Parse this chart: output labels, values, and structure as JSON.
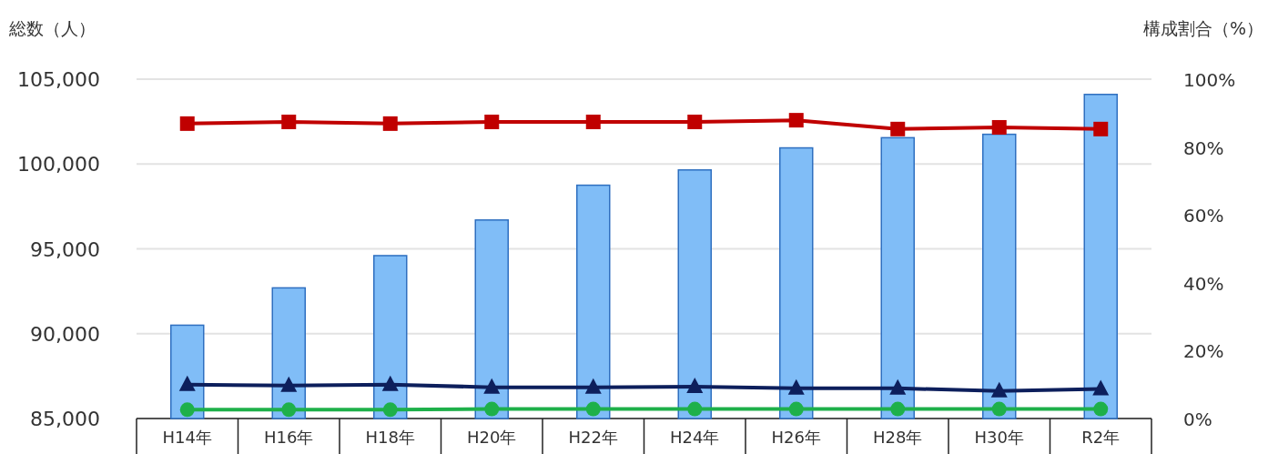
{
  "chart_data": {
    "type": "bar",
    "ylabel": "総数（人）",
    "y2label": "構成割合（%）",
    "categories": [
      "H14年",
      "H16年",
      "H18年",
      "H20年",
      "H22年",
      "H24年",
      "H26年",
      "H28年",
      "H30年",
      "R2年"
    ],
    "ylim": [
      85000,
      105000
    ],
    "yticks": [
      {
        "value": 85000,
        "label": "85,000"
      },
      {
        "value": 90000,
        "label": "90,000"
      },
      {
        "value": 95000,
        "label": "95,000"
      },
      {
        "value": 100000,
        "label": "100,000"
      },
      {
        "value": 105000,
        "label": "105,000"
      }
    ],
    "y2lim": [
      0,
      100
    ],
    "y2ticks": [
      {
        "value": 0,
        "label": "0%"
      },
      {
        "value": 20,
        "label": "20%"
      },
      {
        "value": 40,
        "label": "40%"
      },
      {
        "value": 60,
        "label": "60%"
      },
      {
        "value": 80,
        "label": "80%"
      },
      {
        "value": 100,
        "label": "100%"
      }
    ],
    "grid": "y",
    "series": [
      {
        "color": "#80bdf7",
        "values": [
          90500,
          92700,
          94600,
          96700,
          98750,
          99650,
          100950,
          101550,
          101750,
          104100
        ]
      },
      {
        "type": "line",
        "axis": "y2",
        "marker": "square",
        "color": "#c00000",
        "values": [
          86.9,
          87.4,
          86.9,
          87.4,
          87.4,
          87.4,
          87.9,
          85.3,
          85.8,
          85.3
        ]
      },
      {
        "type": "line",
        "axis": "y2",
        "marker": "triangle",
        "color": "#0d1f5c",
        "values": [
          10.0,
          9.7,
          10.0,
          9.2,
          9.2,
          9.4,
          8.9,
          8.9,
          8.1,
          8.7
        ]
      },
      {
        "type": "line",
        "axis": "y2",
        "marker": "circle",
        "color": "#1eb04a",
        "values": [
          2.6,
          2.6,
          2.6,
          2.8,
          2.8,
          2.8,
          2.8,
          2.8,
          2.8,
          2.8
        ]
      }
    ]
  }
}
